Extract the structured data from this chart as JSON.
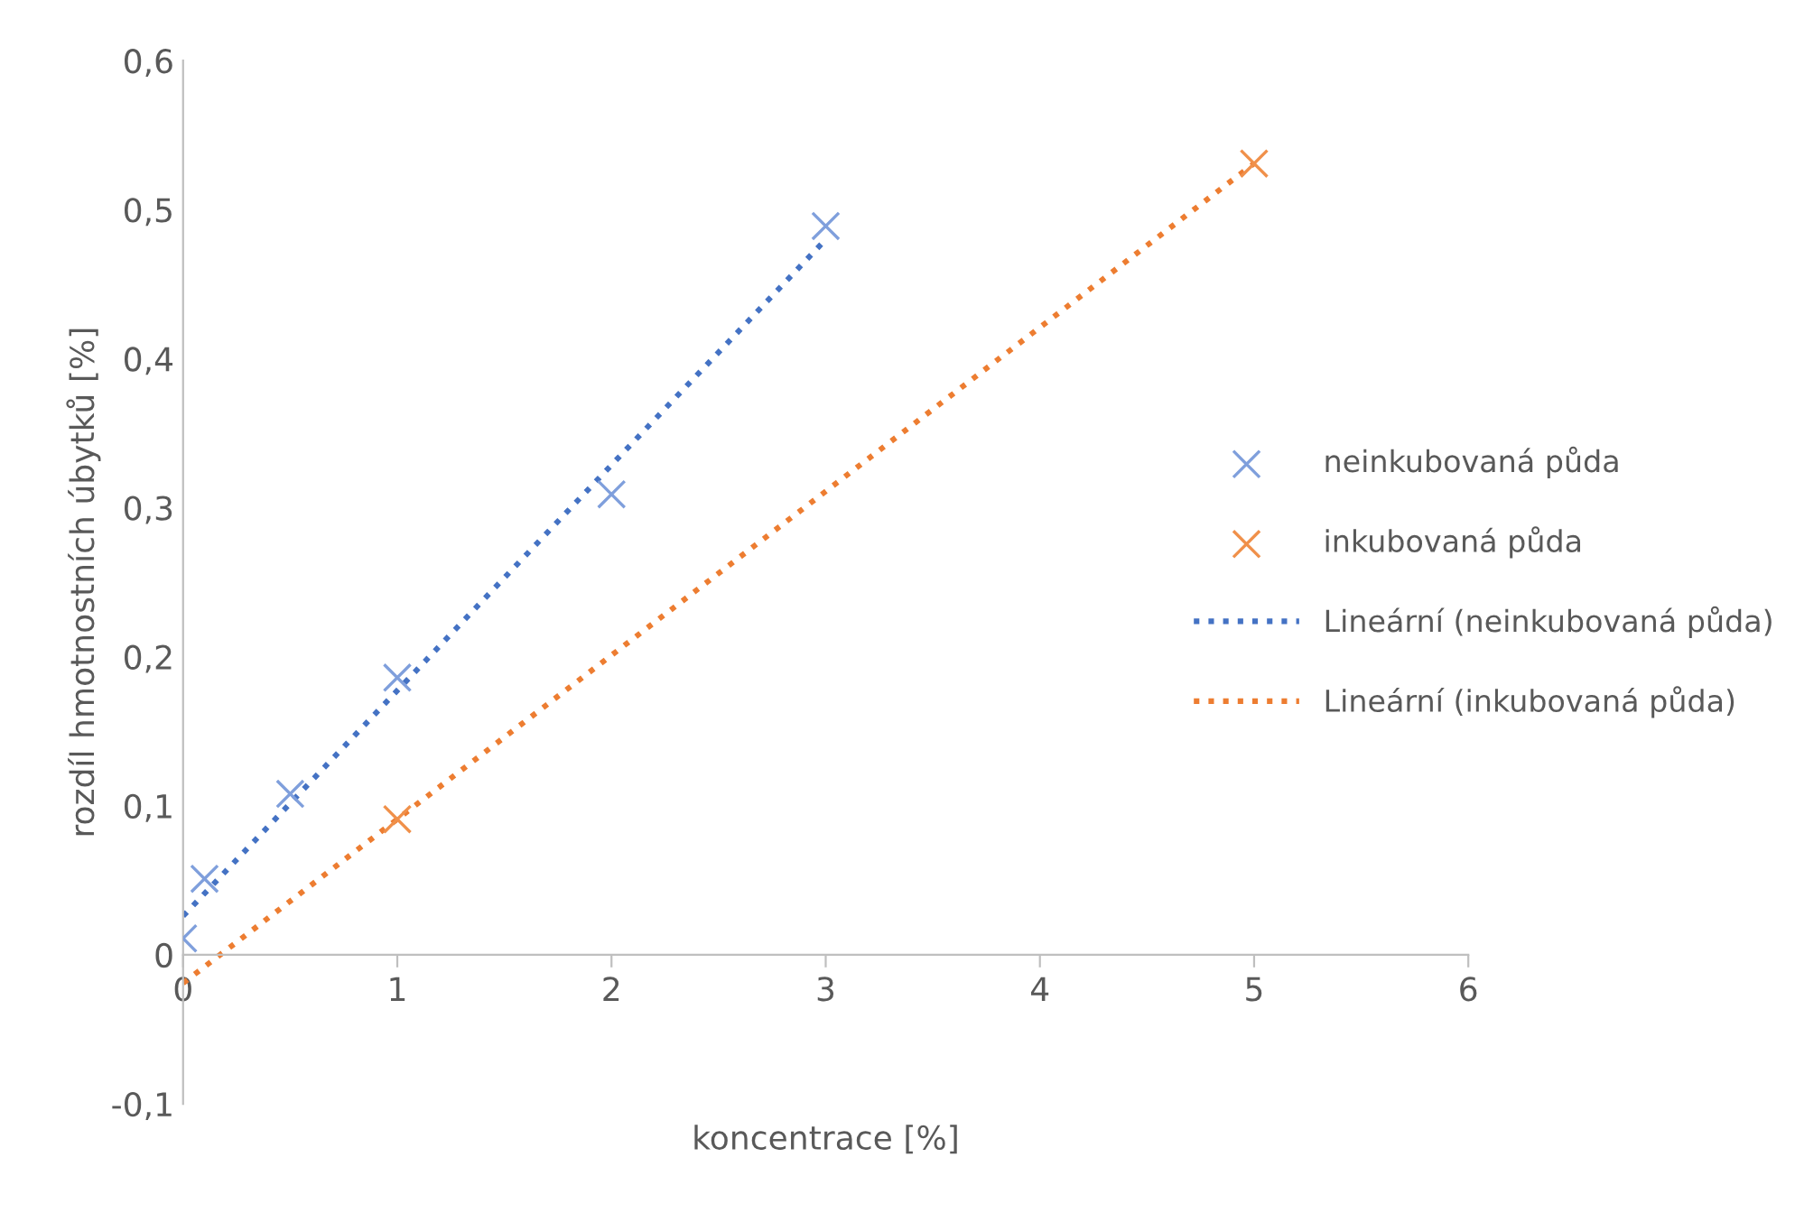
{
  "chart_data": {
    "type": "scatter",
    "xlabel": "koncentrace [%]",
    "ylabel": "rozdíl hmotnostních úbytků [%]",
    "xlim": [
      0,
      6
    ],
    "xticks": [
      0,
      1,
      2,
      3,
      4,
      5,
      6
    ],
    "ylim": [
      -0.1,
      0.6
    ],
    "yticks": [
      {
        "value": -0.1,
        "label": "-0,1"
      },
      0,
      {
        "value": 0.1,
        "label": "0,1"
      },
      {
        "value": 0.2,
        "label": "0,2"
      },
      {
        "value": 0.3,
        "label": "0,3"
      },
      {
        "value": 0.4,
        "label": "0,4"
      },
      {
        "value": 0.5,
        "label": "0,5"
      },
      {
        "value": 0.6,
        "label": "0,6"
      }
    ],
    "grid": false,
    "legend": "right",
    "series": [
      {
        "name": "neinkubovaná půda",
        "color": "#7f9fdc",
        "marker": "cross",
        "x": [
          0,
          0.1,
          0.5,
          1,
          2,
          3
        ],
        "values": [
          0.011,
          0.051,
          0.108,
          0.186,
          0.309,
          0.489
        ]
      },
      {
        "name": "inkubovaná půda",
        "color": "#f0904a",
        "marker": "cross",
        "x": [
          1,
          5
        ],
        "values": [
          0.091,
          0.531
        ]
      },
      {
        "name": "Lineární (neinkubovaná půda)",
        "type": "line",
        "color": "#4472c4",
        "line_style": "dotted",
        "marker": "none",
        "x": [
          0,
          3
        ],
        "values": [
          0.026,
          0.48
        ]
      },
      {
        "name": "Lineární (inkubovaná půda)",
        "type": "line",
        "color": "#ed7d31",
        "line_style": "dotted",
        "marker": "none",
        "x": [
          0,
          5
        ],
        "values": [
          -0.019,
          0.531
        ]
      }
    ]
  }
}
